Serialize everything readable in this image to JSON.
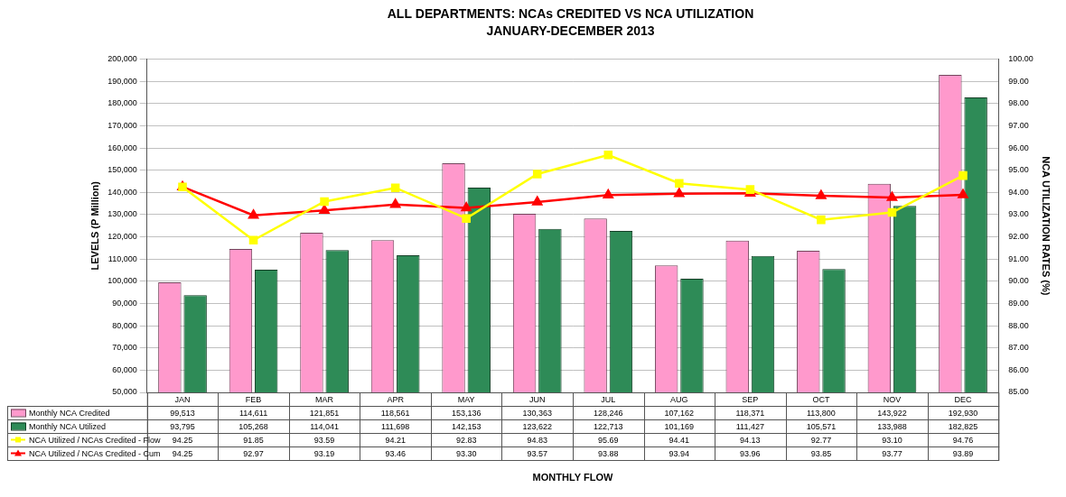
{
  "chart_data": {
    "type": "bar",
    "title": "ALL DEPARTMENTS: NCAs CREDITED VS NCA UTILIZATION",
    "subtitle": "JANUARY-DECEMBER 2013",
    "xlabel": "MONTHLY FLOW",
    "ylabel": "LEVELS (P Million)",
    "y2label": "NCA UTILIZATION RATES (%)",
    "categories": [
      "JAN",
      "FEB",
      "MAR",
      "APR",
      "MAY",
      "JUN",
      "JUL",
      "AUG",
      "SEP",
      "OCT",
      "NOV",
      "DEC"
    ],
    "series": [
      {
        "name": "Monthly NCA Credited",
        "type": "bar",
        "color": "#ff99cc",
        "values": [
          99513,
          114611,
          121851,
          118561,
          153136,
          130363,
          128246,
          107162,
          118371,
          113800,
          143922,
          192930
        ],
        "value_labels": [
          "99,513",
          "114,611",
          "121,851",
          "118,561",
          "153,136",
          "130,363",
          "128,246",
          "107,162",
          "118,371",
          "113,800",
          "143,922",
          "192,930"
        ]
      },
      {
        "name": "Monthly NCA Utilized",
        "type": "bar",
        "color": "#2e8b57",
        "values": [
          93795,
          105268,
          114041,
          111698,
          142153,
          123622,
          122713,
          101169,
          111427,
          105571,
          133988,
          182825
        ],
        "value_labels": [
          "93,795",
          "105,268",
          "114,041",
          "111,698",
          "142,153",
          "123,622",
          "122,713",
          "101,169",
          "111,427",
          "105,571",
          "133,988",
          "182,825"
        ]
      },
      {
        "name": "NCA Utilized / NCAs Credited - Flow",
        "type": "line",
        "axis": "y2",
        "color": "#ffff00",
        "marker": "square",
        "values": [
          94.25,
          91.85,
          93.59,
          94.21,
          92.83,
          94.83,
          95.69,
          94.41,
          94.13,
          92.77,
          93.1,
          94.76
        ],
        "value_labels": [
          "94.25",
          "91.85",
          "93.59",
          "94.21",
          "92.83",
          "94.83",
          "95.69",
          "94.41",
          "94.13",
          "92.77",
          "93.10",
          "94.76"
        ]
      },
      {
        "name": "NCA Utilized / NCAs Credited - Cum",
        "type": "line",
        "axis": "y2",
        "color": "#ff0000",
        "marker": "triangle",
        "values": [
          94.25,
          92.97,
          93.19,
          93.46,
          93.3,
          93.57,
          93.88,
          93.94,
          93.96,
          93.85,
          93.77,
          93.89
        ],
        "value_labels": [
          "94.25",
          "92.97",
          "93.19",
          "93.46",
          "93.30",
          "93.57",
          "93.88",
          "93.94",
          "93.96",
          "93.85",
          "93.77",
          "93.89"
        ]
      }
    ],
    "ylim": [
      50000,
      200000
    ],
    "yticks": [
      {
        "value": 50000,
        "label": "50,000"
      },
      {
        "value": 60000,
        "label": "60,000"
      },
      {
        "value": 70000,
        "label": "70,000"
      },
      {
        "value": 80000,
        "label": "80,000"
      },
      {
        "value": 90000,
        "label": "90,000"
      },
      {
        "value": 100000,
        "label": "100,000"
      },
      {
        "value": 110000,
        "label": "110,000"
      },
      {
        "value": 120000,
        "label": "120,000"
      },
      {
        "value": 130000,
        "label": "130,000"
      },
      {
        "value": 140000,
        "label": "140,000"
      },
      {
        "value": 150000,
        "label": "150,000"
      },
      {
        "value": 160000,
        "label": "160,000"
      },
      {
        "value": 170000,
        "label": "170,000"
      },
      {
        "value": 180000,
        "label": "180,000"
      },
      {
        "value": 190000,
        "label": "190,000"
      },
      {
        "value": 200000,
        "label": "200,000"
      }
    ],
    "y2lim": [
      85,
      100
    ],
    "y2ticks": [
      {
        "value": 85,
        "label": "85.00"
      },
      {
        "value": 86,
        "label": "86.00"
      },
      {
        "value": 87,
        "label": "87.00"
      },
      {
        "value": 88,
        "label": "88.00"
      },
      {
        "value": 89,
        "label": "89.00"
      },
      {
        "value": 90,
        "label": "90.00"
      },
      {
        "value": 91,
        "label": "91.00"
      },
      {
        "value": 92,
        "label": "92.00"
      },
      {
        "value": 93,
        "label": "93.00"
      },
      {
        "value": 94,
        "label": "94.00"
      },
      {
        "value": 95,
        "label": "95.00"
      },
      {
        "value": 96,
        "label": "96.00"
      },
      {
        "value": 97,
        "label": "97.00"
      },
      {
        "value": 98,
        "label": "98.00"
      },
      {
        "value": 99,
        "label": "99.00"
      },
      {
        "value": 100,
        "label": "100.00"
      }
    ],
    "grid": true,
    "legend": "bottom"
  }
}
